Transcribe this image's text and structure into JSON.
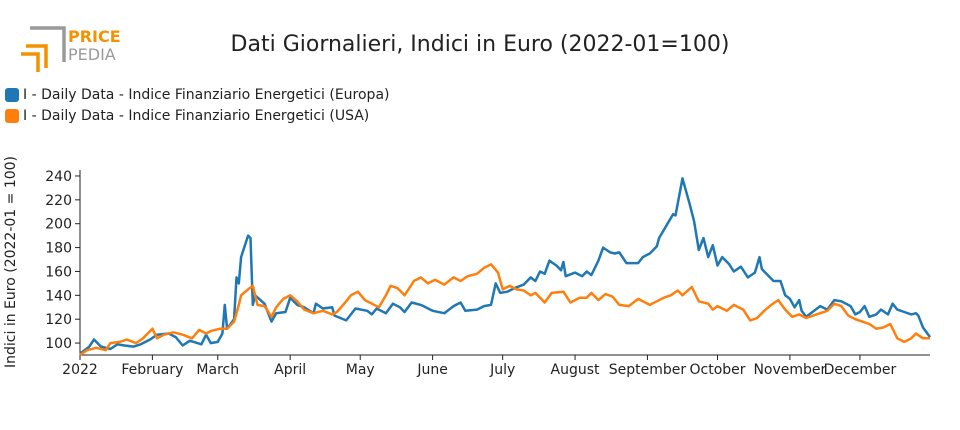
{
  "logo": {
    "line1": "PRICE",
    "line2": "PEDIA",
    "color_accent": "#f39200",
    "color_grey": "#9a9a9a"
  },
  "chart_data": {
    "type": "line",
    "title": "Dati Giornalieri, Indici in Euro (2022-01=100)",
    "ylabel": "Indici in Euro (2022-01 = 100)",
    "xlabel": "",
    "ylim": [
      90,
      245
    ],
    "yticks": [
      100,
      120,
      140,
      160,
      180,
      200,
      220,
      240
    ],
    "xlim": [
      "2022-01-01",
      "2022-12-31"
    ],
    "xticks": [
      {
        "date": "2022-01-01",
        "label": "2022"
      },
      {
        "date": "2022-02-01",
        "label": "February"
      },
      {
        "date": "2022-03-01",
        "label": "March"
      },
      {
        "date": "2022-04-01",
        "label": "April"
      },
      {
        "date": "2022-05-01",
        "label": "May"
      },
      {
        "date": "2022-06-01",
        "label": "June"
      },
      {
        "date": "2022-07-01",
        "label": "July"
      },
      {
        "date": "2022-08-01",
        "label": "August"
      },
      {
        "date": "2022-09-01",
        "label": "September"
      },
      {
        "date": "2022-10-01",
        "label": "October"
      },
      {
        "date": "2022-11-01",
        "label": "November"
      },
      {
        "date": "2022-12-01",
        "label": "December"
      }
    ],
    "grid": false,
    "legend_position": "top-left",
    "series": [
      {
        "name": "I - Daily Data - Indice Finanziario Energetici (Europa)",
        "color": "#1f77b4",
        "points": [
          [
            "2022-01-01",
            91
          ],
          [
            "2022-01-05",
            97
          ],
          [
            "2022-01-07",
            103
          ],
          [
            "2022-01-10",
            97
          ],
          [
            "2022-01-14",
            95
          ],
          [
            "2022-01-17",
            99
          ],
          [
            "2022-01-20",
            98
          ],
          [
            "2022-01-24",
            97
          ],
          [
            "2022-01-27",
            99
          ],
          [
            "2022-01-31",
            103
          ],
          [
            "2022-02-03",
            107
          ],
          [
            "2022-02-08",
            108
          ],
          [
            "2022-02-11",
            105
          ],
          [
            "2022-02-14",
            98
          ],
          [
            "2022-02-17",
            102
          ],
          [
            "2022-02-22",
            99
          ],
          [
            "2022-02-24",
            107
          ],
          [
            "2022-02-26",
            100
          ],
          [
            "2022-03-01",
            101
          ],
          [
            "2022-03-03",
            108
          ],
          [
            "2022-03-04",
            132
          ],
          [
            "2022-03-05",
            112
          ],
          [
            "2022-03-08",
            120
          ],
          [
            "2022-03-09",
            155
          ],
          [
            "2022-03-10",
            150
          ],
          [
            "2022-03-11",
            172
          ],
          [
            "2022-03-14",
            190
          ],
          [
            "2022-03-15",
            188
          ],
          [
            "2022-03-16",
            132
          ],
          [
            "2022-03-17",
            140
          ],
          [
            "2022-03-21",
            133
          ],
          [
            "2022-03-24",
            118
          ],
          [
            "2022-03-26",
            125
          ],
          [
            "2022-03-30",
            126
          ],
          [
            "2022-04-01",
            138
          ],
          [
            "2022-04-04",
            132
          ],
          [
            "2022-04-07",
            130
          ],
          [
            "2022-04-11",
            125
          ],
          [
            "2022-04-12",
            133
          ],
          [
            "2022-04-15",
            129
          ],
          [
            "2022-04-19",
            130
          ],
          [
            "2022-04-20",
            123
          ],
          [
            "2022-04-25",
            119
          ],
          [
            "2022-04-29",
            129
          ],
          [
            "2022-05-04",
            127
          ],
          [
            "2022-05-06",
            124
          ],
          [
            "2022-05-08",
            129
          ],
          [
            "2022-05-12",
            125
          ],
          [
            "2022-05-15",
            133
          ],
          [
            "2022-05-18",
            130
          ],
          [
            "2022-05-20",
            126
          ],
          [
            "2022-05-23",
            134
          ],
          [
            "2022-05-27",
            132
          ],
          [
            "2022-06-01",
            127
          ],
          [
            "2022-06-06",
            125
          ],
          [
            "2022-06-10",
            131
          ],
          [
            "2022-06-13",
            134
          ],
          [
            "2022-06-15",
            127
          ],
          [
            "2022-06-20",
            128
          ],
          [
            "2022-06-23",
            131
          ],
          [
            "2022-06-26",
            132
          ],
          [
            "2022-06-28",
            150
          ],
          [
            "2022-06-30",
            142
          ],
          [
            "2022-07-03",
            143
          ],
          [
            "2022-07-06",
            146
          ],
          [
            "2022-07-10",
            149
          ],
          [
            "2022-07-13",
            155
          ],
          [
            "2022-07-15",
            152
          ],
          [
            "2022-07-17",
            160
          ],
          [
            "2022-07-19",
            158
          ],
          [
            "2022-07-21",
            169
          ],
          [
            "2022-07-24",
            165
          ],
          [
            "2022-07-26",
            161
          ],
          [
            "2022-07-27",
            168
          ],
          [
            "2022-07-28",
            156
          ],
          [
            "2022-08-01",
            159
          ],
          [
            "2022-08-04",
            156
          ],
          [
            "2022-08-06",
            160
          ],
          [
            "2022-08-08",
            157
          ],
          [
            "2022-08-11",
            169
          ],
          [
            "2022-08-13",
            180
          ],
          [
            "2022-08-16",
            176
          ],
          [
            "2022-08-18",
            175
          ],
          [
            "2022-08-20",
            176
          ],
          [
            "2022-08-23",
            167
          ],
          [
            "2022-08-28",
            167
          ],
          [
            "2022-08-30",
            172
          ],
          [
            "2022-09-02",
            175
          ],
          [
            "2022-09-05",
            181
          ],
          [
            "2022-09-06",
            188
          ],
          [
            "2022-09-09",
            198
          ],
          [
            "2022-09-12",
            208
          ],
          [
            "2022-09-13",
            207
          ],
          [
            "2022-09-16",
            238
          ],
          [
            "2022-09-19",
            217
          ],
          [
            "2022-09-21",
            202
          ],
          [
            "2022-09-23",
            178
          ],
          [
            "2022-09-25",
            188
          ],
          [
            "2022-09-27",
            172
          ],
          [
            "2022-09-29",
            182
          ],
          [
            "2022-10-01",
            165
          ],
          [
            "2022-10-03",
            172
          ],
          [
            "2022-10-06",
            166
          ],
          [
            "2022-10-08",
            160
          ],
          [
            "2022-10-11",
            164
          ],
          [
            "2022-10-14",
            155
          ],
          [
            "2022-10-17",
            159
          ],
          [
            "2022-10-19",
            172
          ],
          [
            "2022-10-20",
            162
          ],
          [
            "2022-10-25",
            152
          ],
          [
            "2022-10-28",
            152
          ],
          [
            "2022-10-30",
            140
          ],
          [
            "2022-11-01",
            137
          ],
          [
            "2022-11-03",
            130
          ],
          [
            "2022-11-05",
            136
          ],
          [
            "2022-11-06",
            127
          ],
          [
            "2022-11-08",
            122
          ],
          [
            "2022-11-14",
            131
          ],
          [
            "2022-11-17",
            128
          ],
          [
            "2022-11-20",
            136
          ],
          [
            "2022-11-23",
            135
          ],
          [
            "2022-11-25",
            133
          ],
          [
            "2022-11-27",
            131
          ],
          [
            "2022-11-29",
            124
          ],
          [
            "2022-12-01",
            126
          ],
          [
            "2022-12-03",
            131
          ],
          [
            "2022-12-05",
            122
          ],
          [
            "2022-12-08",
            124
          ],
          [
            "2022-12-10",
            128
          ],
          [
            "2022-12-13",
            124
          ],
          [
            "2022-12-15",
            133
          ],
          [
            "2022-12-17",
            128
          ],
          [
            "2022-12-20",
            126
          ],
          [
            "2022-12-23",
            124
          ],
          [
            "2022-12-25",
            125
          ],
          [
            "2022-12-26",
            123
          ],
          [
            "2022-12-28",
            113
          ],
          [
            "2022-12-31",
            105
          ]
        ]
      },
      {
        "name": "I - Daily Data - Indice Finanziario Energetici (USA)",
        "color": "#ff7f0e",
        "points": [
          [
            "2022-01-01",
            90
          ],
          [
            "2022-01-04",
            94
          ],
          [
            "2022-01-08",
            96
          ],
          [
            "2022-01-12",
            94
          ],
          [
            "2022-01-14",
            100
          ],
          [
            "2022-01-18",
            101
          ],
          [
            "2022-01-21",
            103
          ],
          [
            "2022-01-25",
            100
          ],
          [
            "2022-01-28",
            104
          ],
          [
            "2022-02-01",
            112
          ],
          [
            "2022-02-03",
            104
          ],
          [
            "2022-02-06",
            107
          ],
          [
            "2022-02-10",
            109
          ],
          [
            "2022-02-14",
            107
          ],
          [
            "2022-02-18",
            104
          ],
          [
            "2022-02-21",
            111
          ],
          [
            "2022-02-24",
            108
          ],
          [
            "2022-02-26",
            110
          ],
          [
            "2022-03-02",
            112
          ],
          [
            "2022-03-05",
            112
          ],
          [
            "2022-03-08",
            118
          ],
          [
            "2022-03-10",
            132
          ],
          [
            "2022-03-11",
            140
          ],
          [
            "2022-03-14",
            145
          ],
          [
            "2022-03-16",
            148
          ],
          [
            "2022-03-18",
            132
          ],
          [
            "2022-03-21",
            131
          ],
          [
            "2022-03-24",
            122
          ],
          [
            "2022-03-26",
            130
          ],
          [
            "2022-03-29",
            137
          ],
          [
            "2022-04-01",
            140
          ],
          [
            "2022-04-04",
            135
          ],
          [
            "2022-04-07",
            128
          ],
          [
            "2022-04-11",
            125
          ],
          [
            "2022-04-15",
            127
          ],
          [
            "2022-04-19",
            124
          ],
          [
            "2022-04-21",
            126
          ],
          [
            "2022-04-25",
            135
          ],
          [
            "2022-04-27",
            140
          ],
          [
            "2022-04-30",
            143
          ],
          [
            "2022-05-03",
            136
          ],
          [
            "2022-05-06",
            133
          ],
          [
            "2022-05-09",
            130
          ],
          [
            "2022-05-12",
            140
          ],
          [
            "2022-05-14",
            148
          ],
          [
            "2022-05-17",
            146
          ],
          [
            "2022-05-20",
            140
          ],
          [
            "2022-05-24",
            152
          ],
          [
            "2022-05-27",
            155
          ],
          [
            "2022-05-30",
            150
          ],
          [
            "2022-06-02",
            153
          ],
          [
            "2022-06-06",
            149
          ],
          [
            "2022-06-10",
            155
          ],
          [
            "2022-06-13",
            152
          ],
          [
            "2022-06-16",
            156
          ],
          [
            "2022-06-20",
            158
          ],
          [
            "2022-06-23",
            163
          ],
          [
            "2022-06-26",
            166
          ],
          [
            "2022-06-29",
            159
          ],
          [
            "2022-07-01",
            145
          ],
          [
            "2022-07-04",
            148
          ],
          [
            "2022-07-07",
            145
          ],
          [
            "2022-07-10",
            144
          ],
          [
            "2022-07-13",
            140
          ],
          [
            "2022-07-15",
            142
          ],
          [
            "2022-07-19",
            134
          ],
          [
            "2022-07-22",
            142
          ],
          [
            "2022-07-27",
            143
          ],
          [
            "2022-07-30",
            134
          ],
          [
            "2022-08-03",
            138
          ],
          [
            "2022-08-06",
            138
          ],
          [
            "2022-08-08",
            142
          ],
          [
            "2022-08-11",
            136
          ],
          [
            "2022-08-14",
            141
          ],
          [
            "2022-08-17",
            139
          ],
          [
            "2022-08-20",
            132
          ],
          [
            "2022-08-24",
            131
          ],
          [
            "2022-08-28",
            137
          ],
          [
            "2022-09-02",
            132
          ],
          [
            "2022-09-05",
            135
          ],
          [
            "2022-09-08",
            138
          ],
          [
            "2022-09-11",
            140
          ],
          [
            "2022-09-14",
            144
          ],
          [
            "2022-09-16",
            140
          ],
          [
            "2022-09-20",
            147
          ],
          [
            "2022-09-23",
            135
          ],
          [
            "2022-09-27",
            133
          ],
          [
            "2022-09-29",
            128
          ],
          [
            "2022-10-01",
            131
          ],
          [
            "2022-10-05",
            127
          ],
          [
            "2022-10-08",
            132
          ],
          [
            "2022-10-12",
            128
          ],
          [
            "2022-10-15",
            119
          ],
          [
            "2022-10-18",
            121
          ],
          [
            "2022-10-21",
            127
          ],
          [
            "2022-10-24",
            132
          ],
          [
            "2022-10-27",
            136
          ],
          [
            "2022-10-30",
            128
          ],
          [
            "2022-11-02",
            122
          ],
          [
            "2022-11-05",
            124
          ],
          [
            "2022-11-08",
            121
          ],
          [
            "2022-11-11",
            123
          ],
          [
            "2022-11-14",
            125
          ],
          [
            "2022-11-17",
            127
          ],
          [
            "2022-11-20",
            133
          ],
          [
            "2022-11-23",
            131
          ],
          [
            "2022-11-26",
            123
          ],
          [
            "2022-11-29",
            120
          ],
          [
            "2022-12-02",
            118
          ],
          [
            "2022-12-05",
            116
          ],
          [
            "2022-12-08",
            112
          ],
          [
            "2022-12-11",
            113
          ],
          [
            "2022-12-14",
            116
          ],
          [
            "2022-12-17",
            104
          ],
          [
            "2022-12-20",
            101
          ],
          [
            "2022-12-23",
            104
          ],
          [
            "2022-12-25",
            108
          ],
          [
            "2022-12-28",
            104
          ],
          [
            "2022-12-31",
            104
          ]
        ]
      }
    ]
  }
}
